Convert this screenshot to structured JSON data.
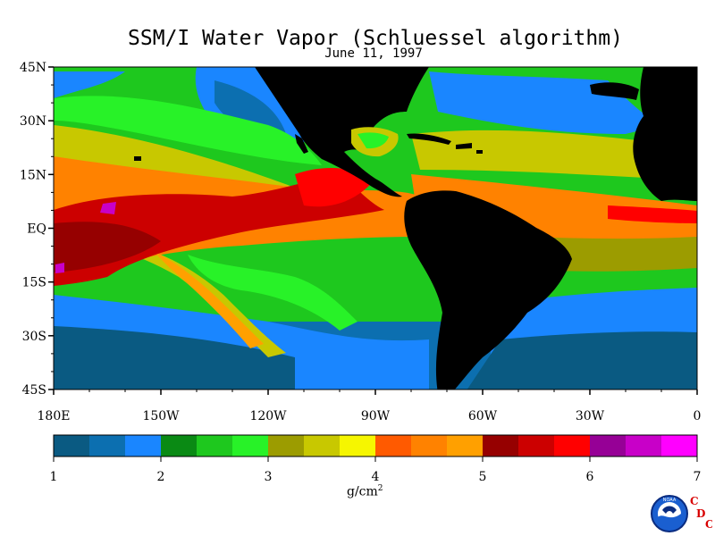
{
  "title": "SSM/I Water Vapor (Schluessel algorithm)",
  "date": "June 11, 1997",
  "lat_labels": [
    "45N",
    "30N",
    "15N",
    "EQ",
    "15S",
    "30S",
    "45S"
  ],
  "lon_labels": [
    "180E",
    "150W",
    "120W",
    "90W",
    "60W",
    "30W",
    "0"
  ],
  "colorbar": {
    "min": 1,
    "max": 7,
    "tick_labels": [
      "1",
      "2",
      "3",
      "4",
      "5",
      "6",
      "7"
    ],
    "units": "g/cm",
    "units_sup": "2",
    "colors": [
      "#0a5a82",
      "#0c6fb0",
      "#1a86ff",
      "#0a8a14",
      "#1ec81e",
      "#28f228",
      "#9c9c00",
      "#c8c800",
      "#f6f600",
      "#ff5a00",
      "#ff8200",
      "#ffa000",
      "#960000",
      "#cc0000",
      "#ff0000",
      "#960096",
      "#c800c8",
      "#ff00ff"
    ]
  },
  "logo": {
    "noaa": "NOAA",
    "cdc": [
      "C",
      "D",
      "C"
    ]
  }
}
